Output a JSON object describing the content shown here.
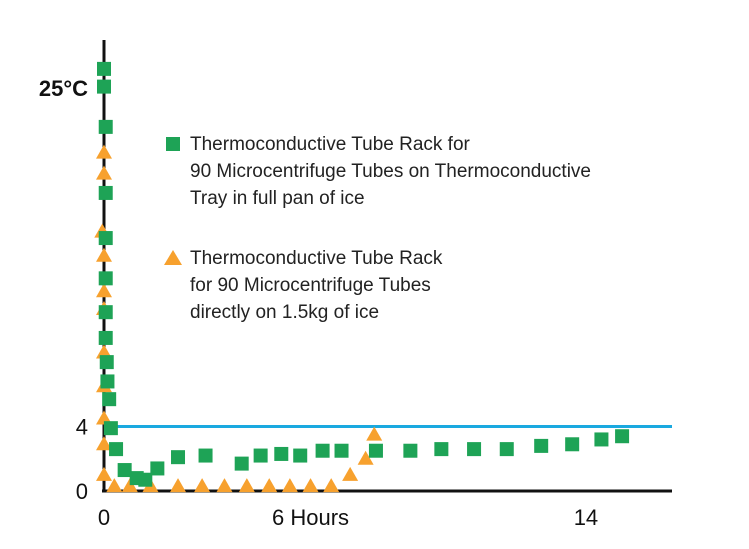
{
  "chart_data": {
    "type": "scatter",
    "title": "",
    "xlabel": "",
    "ylabel": "",
    "xlim": [
      0,
      16.5
    ],
    "ylim": [
      0,
      27
    ],
    "x_ticks": [
      {
        "value": 0,
        "label": "0"
      },
      {
        "value": 6,
        "label": "6 Hours"
      },
      {
        "value": 14,
        "label": "14"
      }
    ],
    "y_ticks": [
      {
        "value": 0,
        "label": "0"
      },
      {
        "value": 4,
        "label": "4"
      },
      {
        "value": 25,
        "label": "25°C",
        "bold": true
      }
    ],
    "reference_line": {
      "y": 4,
      "color": "#1aa9e0"
    },
    "legend_placement": "center",
    "series": [
      {
        "name": "Thermoconductive Tube Rack for\n90 Microcentrifuge Tubes on Thermoconductive\nTray in full pan of ice",
        "marker": "square",
        "color": "#1ea356",
        "points": [
          [
            0.0,
            26.2
          ],
          [
            0.0,
            25.1
          ],
          [
            0.05,
            22.6
          ],
          [
            0.05,
            18.5
          ],
          [
            0.05,
            15.7
          ],
          [
            0.05,
            13.2
          ],
          [
            0.05,
            11.1
          ],
          [
            0.05,
            9.5
          ],
          [
            0.08,
            8.0
          ],
          [
            0.1,
            6.8
          ],
          [
            0.15,
            5.7
          ],
          [
            0.2,
            3.9
          ],
          [
            0.35,
            2.6
          ],
          [
            0.6,
            1.3
          ],
          [
            0.95,
            0.8
          ],
          [
            1.2,
            0.7
          ],
          [
            1.55,
            1.4
          ],
          [
            2.15,
            2.1
          ],
          [
            2.95,
            2.2
          ],
          [
            4.0,
            1.7
          ],
          [
            4.55,
            2.2
          ],
          [
            5.15,
            2.3
          ],
          [
            5.7,
            2.2
          ],
          [
            6.35,
            2.5
          ],
          [
            6.9,
            2.5
          ],
          [
            7.9,
            2.5
          ],
          [
            8.9,
            2.5
          ],
          [
            9.8,
            2.6
          ],
          [
            10.75,
            2.6
          ],
          [
            11.7,
            2.6
          ],
          [
            12.7,
            2.8
          ],
          [
            13.6,
            2.9
          ],
          [
            14.45,
            3.2
          ],
          [
            15.05,
            3.4
          ]
        ]
      },
      {
        "name": "Thermoconductive Tube Rack\nfor 90 Microcentrifuge Tubes\ndirectly on 1.5kg of ice",
        "marker": "triangle",
        "color": "#f7a12e",
        "points": [
          [
            0.0,
            21.0
          ],
          [
            0.0,
            19.7
          ],
          [
            -0.05,
            16.1
          ],
          [
            0.0,
            14.6
          ],
          [
            0.0,
            12.4
          ],
          [
            0.0,
            11.3
          ],
          [
            0.0,
            8.6
          ],
          [
            0.0,
            6.5
          ],
          [
            0.0,
            4.5
          ],
          [
            0.0,
            2.9
          ],
          [
            0.0,
            1.0
          ],
          [
            0.3,
            0.3
          ],
          [
            0.75,
            0.3
          ],
          [
            1.35,
            0.3
          ],
          [
            2.15,
            0.3
          ],
          [
            2.85,
            0.3
          ],
          [
            3.5,
            0.3
          ],
          [
            4.15,
            0.3
          ],
          [
            4.8,
            0.3
          ],
          [
            5.4,
            0.3
          ],
          [
            6.0,
            0.3
          ],
          [
            6.6,
            0.3
          ],
          [
            7.15,
            1.0
          ],
          [
            7.6,
            2.0
          ],
          [
            7.85,
            3.5
          ]
        ]
      }
    ]
  }
}
